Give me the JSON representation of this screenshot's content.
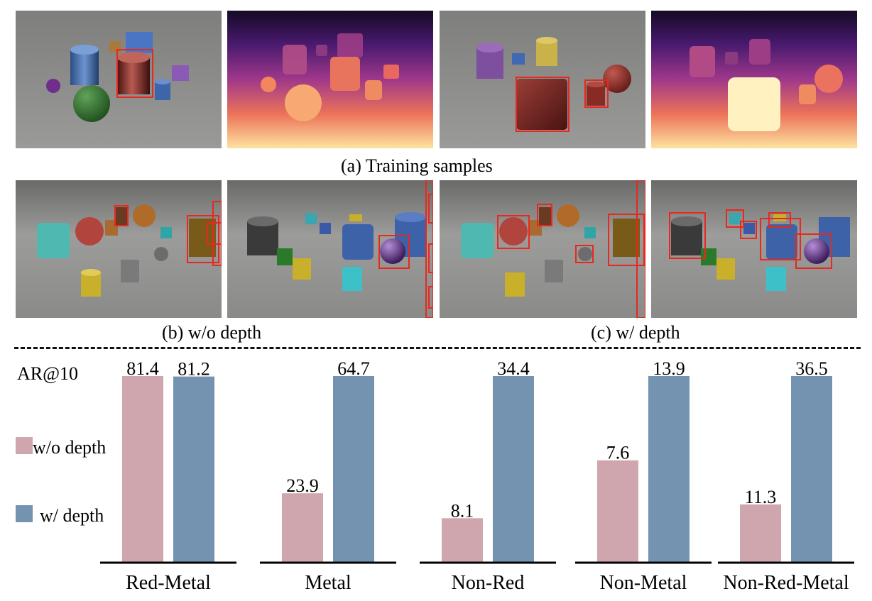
{
  "figure": {
    "caption_a": "(a) Training samples",
    "caption_b": "(b) w/o depth",
    "caption_c": "(c) w/ depth"
  },
  "colors": {
    "wo_depth": "#cfa6ad",
    "w_depth": "#7393b0",
    "box": "#e8281e"
  },
  "chart_data": {
    "type": "bar",
    "ylabel": "AR@10",
    "categories": [
      "Red-Metal",
      "Metal",
      "Non-Red",
      "Non-Metal",
      "Non-Red-Metal"
    ],
    "series": [
      {
        "name": "w/o depth",
        "values": [
          81.4,
          23.9,
          8.1,
          7.6,
          11.3
        ]
      },
      {
        "name": "w/ depth",
        "values": [
          81.2,
          64.7,
          34.4,
          13.9,
          36.5
        ]
      }
    ],
    "legend": "left"
  }
}
